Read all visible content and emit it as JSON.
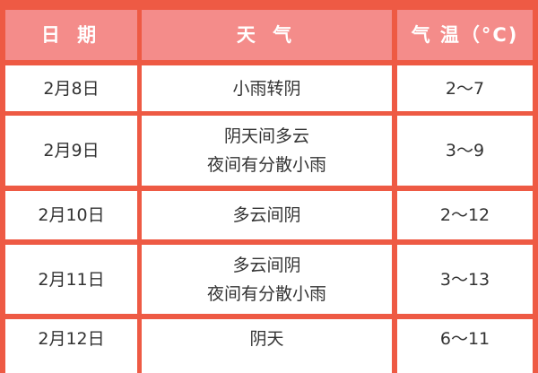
{
  "header": {
    "date": "日 期",
    "weather": "天 气",
    "temp": "气 温（°C)"
  },
  "rows": [
    {
      "date": "2月8日",
      "weather": [
        "小雨转阴"
      ],
      "temp": "2～7"
    },
    {
      "date": "2月9日",
      "weather": [
        "阴天间多云",
        "夜间有分散小雨"
      ],
      "temp": "3～9"
    },
    {
      "date": "2月10日",
      "weather": [
        "多云间阴"
      ],
      "temp": "2～12"
    },
    {
      "date": "2月11日",
      "weather": [
        "多云间阴",
        "夜间有分散小雨"
      ],
      "temp": "3～13"
    },
    {
      "date": "2月12日",
      "weather": [
        "阴天"
      ],
      "temp": "6～11"
    }
  ],
  "colors": {
    "border": "#ee5a44",
    "header_bg": "#f48c8a"
  }
}
